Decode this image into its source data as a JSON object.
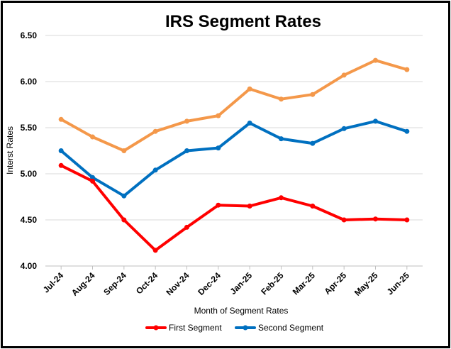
{
  "chart_data": {
    "type": "line",
    "title": "IRS Segment Rates",
    "xlabel": "Month of Segment Rates",
    "ylabel": "Interst Rates",
    "categories": [
      "Jul-24",
      "Aug-24",
      "Sep-24",
      "Oct-24",
      "Nov-24",
      "Dec-24",
      "Jan-25",
      "Feb-25",
      "Mar-25",
      "Apr-25",
      "May-25",
      "Jun-25"
    ],
    "ylim": [
      4.0,
      6.5
    ],
    "yticks": [
      "4.00",
      "4.50",
      "5.00",
      "5.50",
      "6.00",
      "6.50"
    ],
    "grid": true,
    "legend_position": "bottom",
    "series": [
      {
        "name": "First Segment",
        "color": "#ff0000",
        "in_legend": true,
        "values": [
          5.09,
          4.92,
          4.5,
          4.17,
          4.42,
          4.66,
          4.65,
          4.74,
          4.65,
          4.5,
          4.51,
          4.5
        ]
      },
      {
        "name": "Second Segment",
        "color": "#0070c0",
        "in_legend": true,
        "values": [
          5.25,
          4.96,
          4.76,
          5.04,
          5.25,
          5.28,
          5.55,
          5.38,
          5.33,
          5.49,
          5.57,
          5.46
        ]
      },
      {
        "color": "#f4984a",
        "in_legend": false,
        "values": [
          5.59,
          5.4,
          5.25,
          5.46,
          5.57,
          5.63,
          5.92,
          5.81,
          5.86,
          6.07,
          6.23,
          6.13
        ]
      }
    ]
  }
}
